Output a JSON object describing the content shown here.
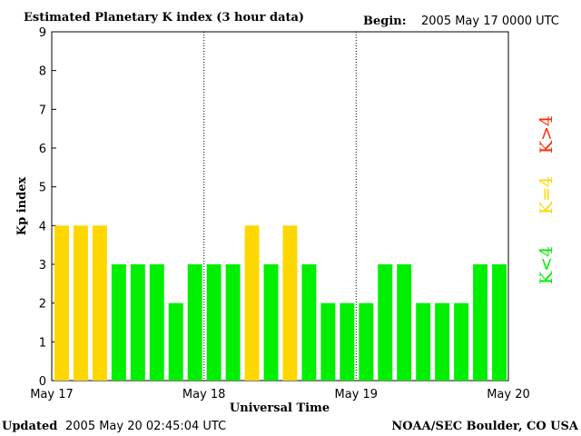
{
  "chart_data": {
    "type": "bar",
    "title": "Estimated Planetary K index (3 hour data)",
    "begin_label": "Begin:",
    "begin_value": "2005 May 17 0000 UTC",
    "xlabel": "Universal Time",
    "ylabel": "Kp index",
    "x_ticks": [
      "May 17",
      "May 18",
      "May 19",
      "May 20"
    ],
    "y_ticks": [
      "0",
      "1",
      "2",
      "3",
      "4",
      "5",
      "6",
      "7",
      "8",
      "9"
    ],
    "ylim": [
      0,
      9
    ],
    "grid": false,
    "values": [
      4,
      4,
      4,
      3,
      3,
      3,
      2,
      3,
      3,
      3,
      4,
      3,
      4,
      3,
      2,
      2,
      2,
      3,
      3,
      2,
      2,
      2,
      3,
      3
    ],
    "legend": [
      {
        "label": "K<4",
        "color": "#00ee00"
      },
      {
        "label": "K=4",
        "color": "#ffd700"
      },
      {
        "label": "K>4",
        "color": "#ff2a00"
      }
    ],
    "colors": {
      "low": "#00ee00",
      "equal": "#ffd700",
      "high": "#ff2a00"
    }
  },
  "footer": {
    "updated_label": "Updated",
    "updated_value": "2005 May 20 02:45:04 UTC",
    "source": "NOAA/SEC Boulder, CO USA"
  }
}
